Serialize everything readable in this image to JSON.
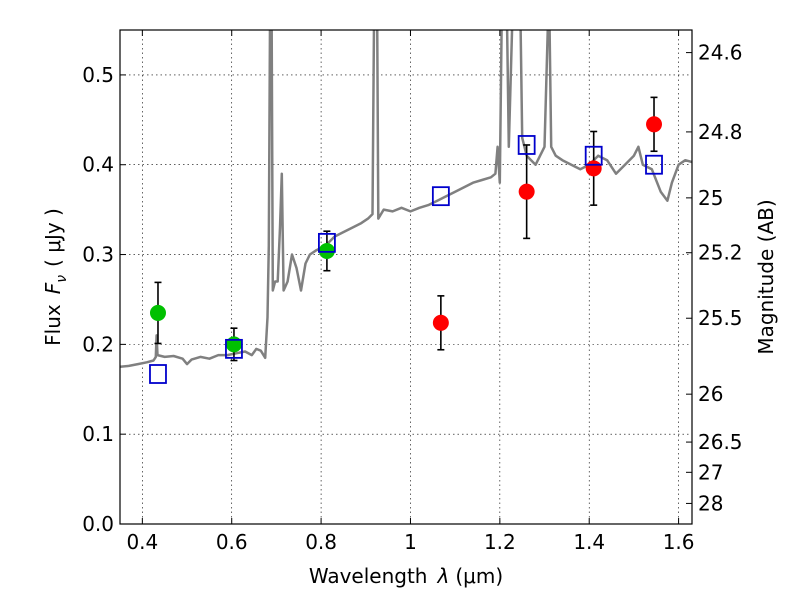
{
  "chart_data": {
    "type": "scatter",
    "xlabel_pre": "Wavelength",
    "xlabel_sym": "λ",
    "xlabel_unit": "(μm)",
    "ylabel_pre": "Flux",
    "ylabel_sym": "F",
    "ylabel_sub": "ν",
    "ylabel_unit": "( μJy )",
    "y2label": "Magnitude (AB)",
    "xlim": [
      0.35,
      1.63
    ],
    "ylim": [
      0.0,
      0.55
    ],
    "grid": true,
    "x_ticks": [
      {
        "v": 0.4,
        "label": "0.4"
      },
      {
        "v": 0.6,
        "label": "0.6"
      },
      {
        "v": 0.8,
        "label": "0.8"
      },
      {
        "v": 1.0,
        "label": "1"
      },
      {
        "v": 1.2,
        "label": "1.2"
      },
      {
        "v": 1.4,
        "label": "1.4"
      },
      {
        "v": 1.6,
        "label": "1.6"
      }
    ],
    "y_ticks": [
      {
        "v": 0.0,
        "label": "0.0"
      },
      {
        "v": 0.1,
        "label": "0.1"
      },
      {
        "v": 0.2,
        "label": "0.2"
      },
      {
        "v": 0.3,
        "label": "0.3"
      },
      {
        "v": 0.4,
        "label": "0.4"
      },
      {
        "v": 0.5,
        "label": "0.5"
      }
    ],
    "y2_ticks": [
      {
        "mag": 24.6,
        "label": "24.6"
      },
      {
        "mag": 24.8,
        "label": "24.8"
      },
      {
        "mag": 25.0,
        "label": "25"
      },
      {
        "mag": 25.2,
        "label": "25.2"
      },
      {
        "mag": 25.5,
        "label": "25.5"
      },
      {
        "mag": 26.0,
        "label": "26"
      },
      {
        "mag": 26.5,
        "label": "26.5"
      },
      {
        "mag": 27.0,
        "label": "27"
      },
      {
        "mag": 28.0,
        "label": "28"
      }
    ],
    "spectrum": {
      "color": "#808080",
      "points": [
        [
          0.35,
          0.175
        ],
        [
          0.37,
          0.176
        ],
        [
          0.39,
          0.178
        ],
        [
          0.41,
          0.18
        ],
        [
          0.425,
          0.182
        ],
        [
          0.43,
          0.186
        ],
        [
          0.432,
          0.21
        ],
        [
          0.434,
          0.188
        ],
        [
          0.45,
          0.186
        ],
        [
          0.47,
          0.187
        ],
        [
          0.49,
          0.184
        ],
        [
          0.5,
          0.178
        ],
        [
          0.51,
          0.183
        ],
        [
          0.53,
          0.186
        ],
        [
          0.55,
          0.184
        ],
        [
          0.57,
          0.188
        ],
        [
          0.59,
          0.188
        ],
        [
          0.61,
          0.19
        ],
        [
          0.63,
          0.192
        ],
        [
          0.645,
          0.188
        ],
        [
          0.655,
          0.195
        ],
        [
          0.665,
          0.193
        ],
        [
          0.675,
          0.185
        ],
        [
          0.68,
          0.23
        ],
        [
          0.683,
          0.31
        ],
        [
          0.686,
          0.6
        ],
        [
          0.689,
          0.6
        ],
        [
          0.692,
          0.26
        ],
        [
          0.697,
          0.27
        ],
        [
          0.703,
          0.27
        ],
        [
          0.708,
          0.33
        ],
        [
          0.712,
          0.39
        ],
        [
          0.716,
          0.26
        ],
        [
          0.725,
          0.27
        ],
        [
          0.735,
          0.3
        ],
        [
          0.745,
          0.285
        ],
        [
          0.755,
          0.26
        ],
        [
          0.765,
          0.29
        ],
        [
          0.775,
          0.3
        ],
        [
          0.79,
          0.305
        ],
        [
          0.81,
          0.31
        ],
        [
          0.83,
          0.32
        ],
        [
          0.85,
          0.325
        ],
        [
          0.87,
          0.33
        ],
        [
          0.89,
          0.335
        ],
        [
          0.905,
          0.34
        ],
        [
          0.915,
          0.345
        ],
        [
          0.919,
          0.6
        ],
        [
          0.925,
          0.6
        ],
        [
          0.928,
          0.34
        ],
        [
          0.94,
          0.35
        ],
        [
          0.96,
          0.348
        ],
        [
          0.98,
          0.352
        ],
        [
          1.0,
          0.348
        ],
        [
          1.02,
          0.352
        ],
        [
          1.04,
          0.355
        ],
        [
          1.06,
          0.36
        ],
        [
          1.08,
          0.365
        ],
        [
          1.1,
          0.37
        ],
        [
          1.12,
          0.375
        ],
        [
          1.14,
          0.38
        ],
        [
          1.16,
          0.383
        ],
        [
          1.18,
          0.386
        ],
        [
          1.19,
          0.39
        ],
        [
          1.195,
          0.42
        ],
        [
          1.2,
          0.38
        ],
        [
          1.205,
          0.6
        ],
        [
          1.215,
          0.6
        ],
        [
          1.22,
          0.42
        ],
        [
          1.23,
          0.6
        ],
        [
          1.245,
          0.6
        ],
        [
          1.25,
          0.43
        ],
        [
          1.26,
          0.41
        ],
        [
          1.27,
          0.405
        ],
        [
          1.28,
          0.4
        ],
        [
          1.29,
          0.41
        ],
        [
          1.3,
          0.42
        ],
        [
          1.31,
          0.6
        ],
        [
          1.315,
          0.42
        ],
        [
          1.325,
          0.41
        ],
        [
          1.34,
          0.405
        ],
        [
          1.36,
          0.4
        ],
        [
          1.38,
          0.395
        ],
        [
          1.4,
          0.4
        ],
        [
          1.42,
          0.41
        ],
        [
          1.44,
          0.405
        ],
        [
          1.46,
          0.39
        ],
        [
          1.48,
          0.4
        ],
        [
          1.5,
          0.41
        ],
        [
          1.51,
          0.42
        ],
        [
          1.52,
          0.4
        ],
        [
          1.54,
          0.395
        ],
        [
          1.56,
          0.37
        ],
        [
          1.575,
          0.36
        ],
        [
          1.585,
          0.38
        ],
        [
          1.6,
          0.4
        ],
        [
          1.615,
          0.405
        ],
        [
          1.63,
          0.403
        ]
      ]
    },
    "series": [
      {
        "marker": "circle",
        "color": "#00c000",
        "points": [
          {
            "x": 0.435,
            "y": 0.235,
            "yerr": 0.034
          },
          {
            "x": 0.605,
            "y": 0.2,
            "yerr": 0.018
          },
          {
            "x": 0.813,
            "y": 0.304,
            "yerr": 0.022
          }
        ]
      },
      {
        "marker": "circle",
        "color": "#ff0000",
        "points": [
          {
            "x": 1.068,
            "y": 0.224,
            "yerr": 0.03
          },
          {
            "x": 1.26,
            "y": 0.37,
            "yerr": 0.052
          },
          {
            "x": 1.41,
            "y": 0.396,
            "yerr": 0.041
          },
          {
            "x": 1.545,
            "y": 0.445,
            "yerr": 0.03
          }
        ]
      },
      {
        "marker": "square",
        "color": "#0000cc",
        "points": [
          {
            "x": 0.435,
            "y": 0.167
          },
          {
            "x": 0.605,
            "y": 0.195
          },
          {
            "x": 0.813,
            "y": 0.313
          },
          {
            "x": 1.068,
            "y": 0.365
          },
          {
            "x": 1.26,
            "y": 0.422
          },
          {
            "x": 1.41,
            "y": 0.41
          },
          {
            "x": 1.545,
            "y": 0.4
          }
        ]
      }
    ]
  }
}
